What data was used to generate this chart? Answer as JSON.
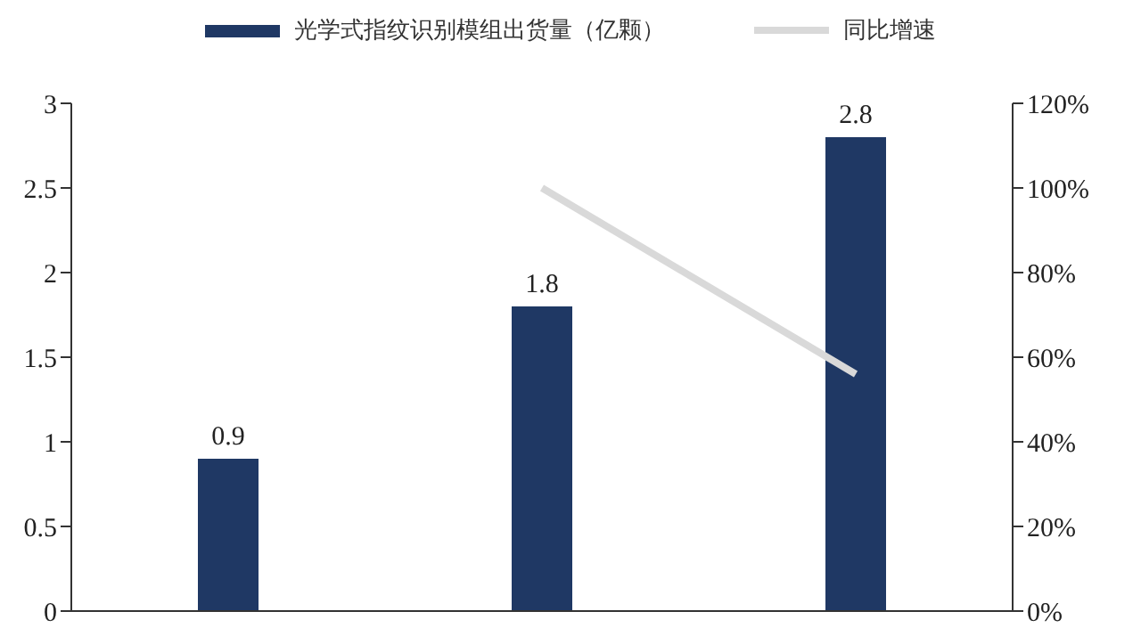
{
  "chart_data": {
    "type": "bar",
    "categories": [
      null,
      null,
      null
    ],
    "series": [
      {
        "name": "光学式指纹识别模组出货量（亿颗）",
        "color": "#1f3864",
        "values": [
          0.9,
          1.8,
          2.8
        ],
        "value_labels": [
          "0.9",
          "1.8",
          "2.8"
        ]
      },
      {
        "name": "同比增速",
        "type": "line",
        "axis": "y2",
        "color": "#d9d9d9",
        "values": [
          null,
          100,
          56
        ]
      }
    ],
    "ylim": [
      0,
      3
    ],
    "yticks": [
      0,
      0.5,
      1,
      1.5,
      2,
      2.5,
      3
    ],
    "y2lim": [
      0,
      120
    ],
    "y2ticks": [
      {
        "value": 0,
        "label": "0%"
      },
      {
        "value": 20,
        "label": "20%"
      },
      {
        "value": 40,
        "label": "40%"
      },
      {
        "value": 60,
        "label": "60%"
      },
      {
        "value": 80,
        "label": "80%"
      },
      {
        "value": 100,
        "label": "100%"
      },
      {
        "value": 120,
        "label": "120%"
      }
    ],
    "legend": "top",
    "marker": "none"
  }
}
